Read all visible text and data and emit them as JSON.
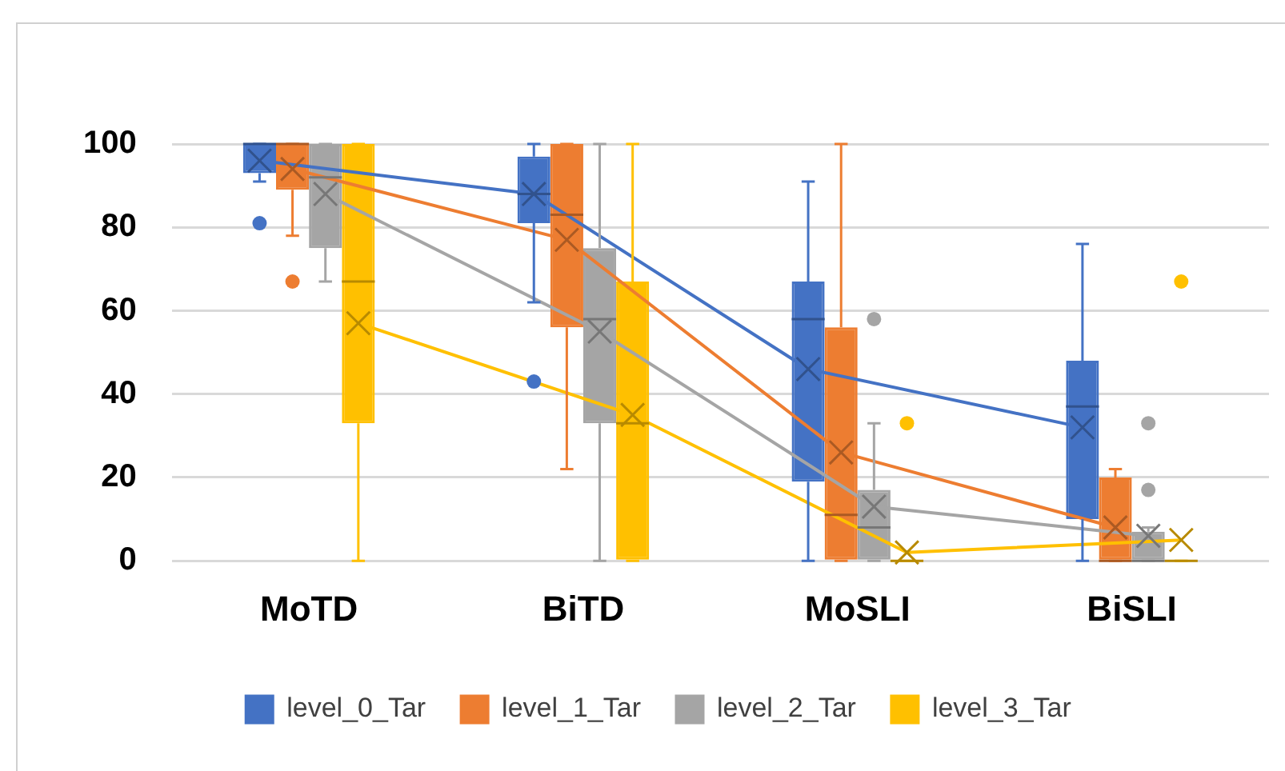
{
  "chart_data": {
    "type": "box",
    "categories": [
      "MoTD",
      "BiTD",
      "MoSLI",
      "BiSLI"
    ],
    "ylim": [
      0,
      100
    ],
    "yticks": [
      0,
      20,
      40,
      60,
      80,
      100
    ],
    "grid": "y",
    "legend": "bottom",
    "series": [
      {
        "name": "level_0_Tar",
        "color": "#4472c4",
        "boxes": [
          {
            "low": 91,
            "q1": 93,
            "median": 100,
            "q3": 100,
            "high": 100,
            "mean": 96,
            "outliers": [
              81
            ]
          },
          {
            "low": 62,
            "q1": 81,
            "median": 88,
            "q3": 97,
            "high": 100,
            "mean": 88,
            "outliers": [
              43
            ]
          },
          {
            "low": 0,
            "q1": 19,
            "median": 58,
            "q3": 67,
            "high": 91,
            "mean": 46
          },
          {
            "low": 0,
            "q1": 10,
            "median": 37,
            "q3": 48,
            "high": 76,
            "mean": 32
          }
        ]
      },
      {
        "name": "level_1_Tar",
        "color": "#ed7d31",
        "boxes": [
          {
            "low": 78,
            "q1": 89,
            "median": 100,
            "q3": 100,
            "high": 100,
            "mean": 94,
            "outliers": [
              67
            ]
          },
          {
            "low": 22,
            "q1": 56,
            "median": 83,
            "q3": 100,
            "high": 100,
            "mean": 77
          },
          {
            "low": 0,
            "q1": 0,
            "median": 11,
            "q3": 56,
            "high": 100,
            "mean": 26
          },
          {
            "low": 0,
            "q1": 0,
            "median": 0,
            "q3": 20,
            "high": 22,
            "mean": 8
          }
        ]
      },
      {
        "name": "level_2_Tar",
        "color": "#a5a5a5",
        "boxes": [
          {
            "low": 67,
            "q1": 75,
            "median": 92,
            "q3": 100,
            "high": 100,
            "mean": 88
          },
          {
            "low": 0,
            "q1": 33,
            "median": 58,
            "q3": 75,
            "high": 100,
            "mean": 55
          },
          {
            "low": 0,
            "q1": 0,
            "median": 8,
            "q3": 17,
            "high": 33,
            "mean": 13,
            "outliers": [
              58
            ]
          },
          {
            "low": 0,
            "q1": 0,
            "median": 0,
            "q3": 7,
            "high": 8,
            "mean": 6,
            "outliers": [
              33,
              17
            ]
          }
        ]
      },
      {
        "name": "level_3_Tar",
        "color": "#ffc000",
        "boxes": [
          {
            "low": 0,
            "q1": 33,
            "median": 67,
            "q3": 100,
            "high": 100,
            "mean": 57
          },
          {
            "low": 0,
            "q1": 0,
            "median": 33,
            "q3": 67,
            "high": 100,
            "mean": 35
          },
          {
            "low": 0,
            "q1": 0,
            "median": 0,
            "q3": 0,
            "high": 0,
            "mean": 2,
            "outliers": [
              33
            ]
          },
          {
            "low": 0,
            "q1": 0,
            "median": 0,
            "q3": 0,
            "high": 0,
            "mean": 5,
            "outliers": [
              67
            ]
          }
        ]
      },
      {
        "type": "line",
        "color": "#4472c4",
        "marker": "none",
        "values": [
          96,
          88,
          46,
          32
        ]
      },
      {
        "type": "line",
        "color": "#ed7d31",
        "marker": "none",
        "values": [
          94,
          77,
          26,
          8
        ]
      },
      {
        "type": "line",
        "color": "#a5a5a5",
        "marker": "none",
        "values": [
          88,
          55,
          13,
          6
        ]
      },
      {
        "type": "line",
        "color": "#ffc000",
        "marker": "none",
        "values": [
          57,
          35,
          2,
          5
        ]
      }
    ]
  }
}
